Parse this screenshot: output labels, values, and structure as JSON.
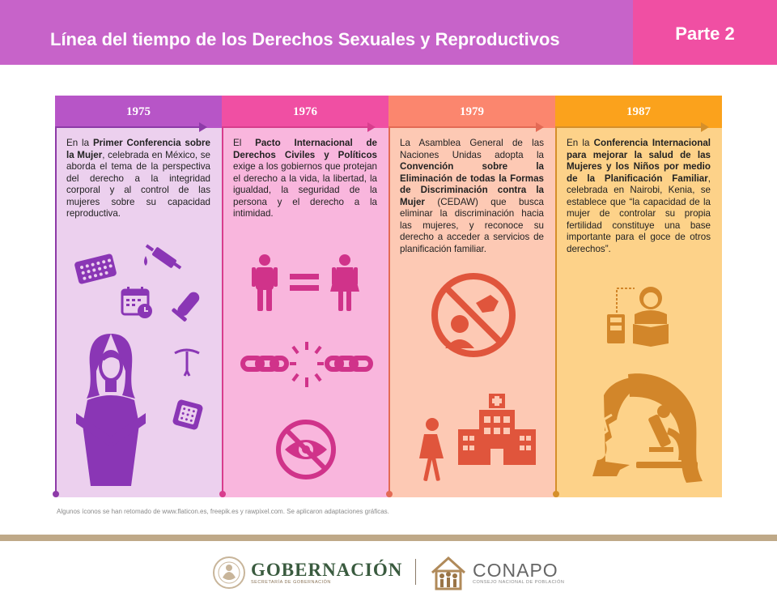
{
  "header": {
    "title": "Línea del tiempo de los Derechos Sexuales y Reproductivos",
    "part": "Parte 2"
  },
  "columns": [
    {
      "year": "1975",
      "text_parts": [
        "En la ",
        "Primer Conferencia sobre la Mujer",
        ", celebrada en México, se aborda el tema de la perspectiva del derecho a la integridad corporal y al control de las mujeres sobre su capacidad reproductiva."
      ],
      "icons": [
        "contraceptive-pills-icon",
        "syringe-icon",
        "calendar-clock-icon",
        "condom-icon",
        "iud-icon",
        "woman-crossed-arms-icon",
        "contraceptive-patch-icon"
      ]
    },
    {
      "year": "1976",
      "text_parts": [
        "El ",
        "Pacto Internacional de Derechos Civiles y Políticos",
        " exige a los gobiernos que protejan el derecho a la vida, la libertad, la igualdad, la seguridad de la persona y el derecho a la intimidad."
      ],
      "icons": [
        "man-icon",
        "equals-icon",
        "woman-icon",
        "broken-chain-icon",
        "no-eye-icon"
      ]
    },
    {
      "year": "1979",
      "text_parts": [
        "La Asamblea General de las Naciones Unidas adopta la ",
        "Convención sobre la Eliminación de todas la Formas de Discriminación contra la Mujer",
        " (CEDAW) que busca eliminar la discriminación hacia las mujeres, y reconoce su derecho a acceder a servicios de planificación familiar."
      ],
      "icons": [
        "no-discrimination-icon",
        "walking-girl-icon",
        "hospital-icon"
      ]
    },
    {
      "year": "1987",
      "text_parts": [
        "En la ",
        "Conferencia Internacional para mejorar la salud de las Mujeres y los Niños por medio de la Planificación Familiar",
        ", celebrada en Nairobi, Kenia, se establece que “la capacidad de la mujer de controlar su propia fertilidad constituye una base importante para el goce de otros derechos”."
      ],
      "icons": [
        "woman-reading-icon",
        "woman-microscope-icon"
      ]
    }
  ],
  "credit": "Algunos íconos se han retomado de www.flaticon.es, freepik.es y rawpixel.com. Se aplicaron adaptaciones gráficas.",
  "footer": {
    "gob_name": "GOBERNACIÓN",
    "gob_sub": "SECRETARÍA DE GOBERNACIÓN",
    "conapo_name": "CONAPO",
    "conapo_sub": "CONSEJO NACIONAL DE POBLACIÓN"
  },
  "colors": {
    "header": "#c763c9",
    "part": "#f04fa3",
    "col1": "#b755c7",
    "col2": "#f04fa3",
    "col3": "#fb866e",
    "col4": "#fba21c"
  }
}
